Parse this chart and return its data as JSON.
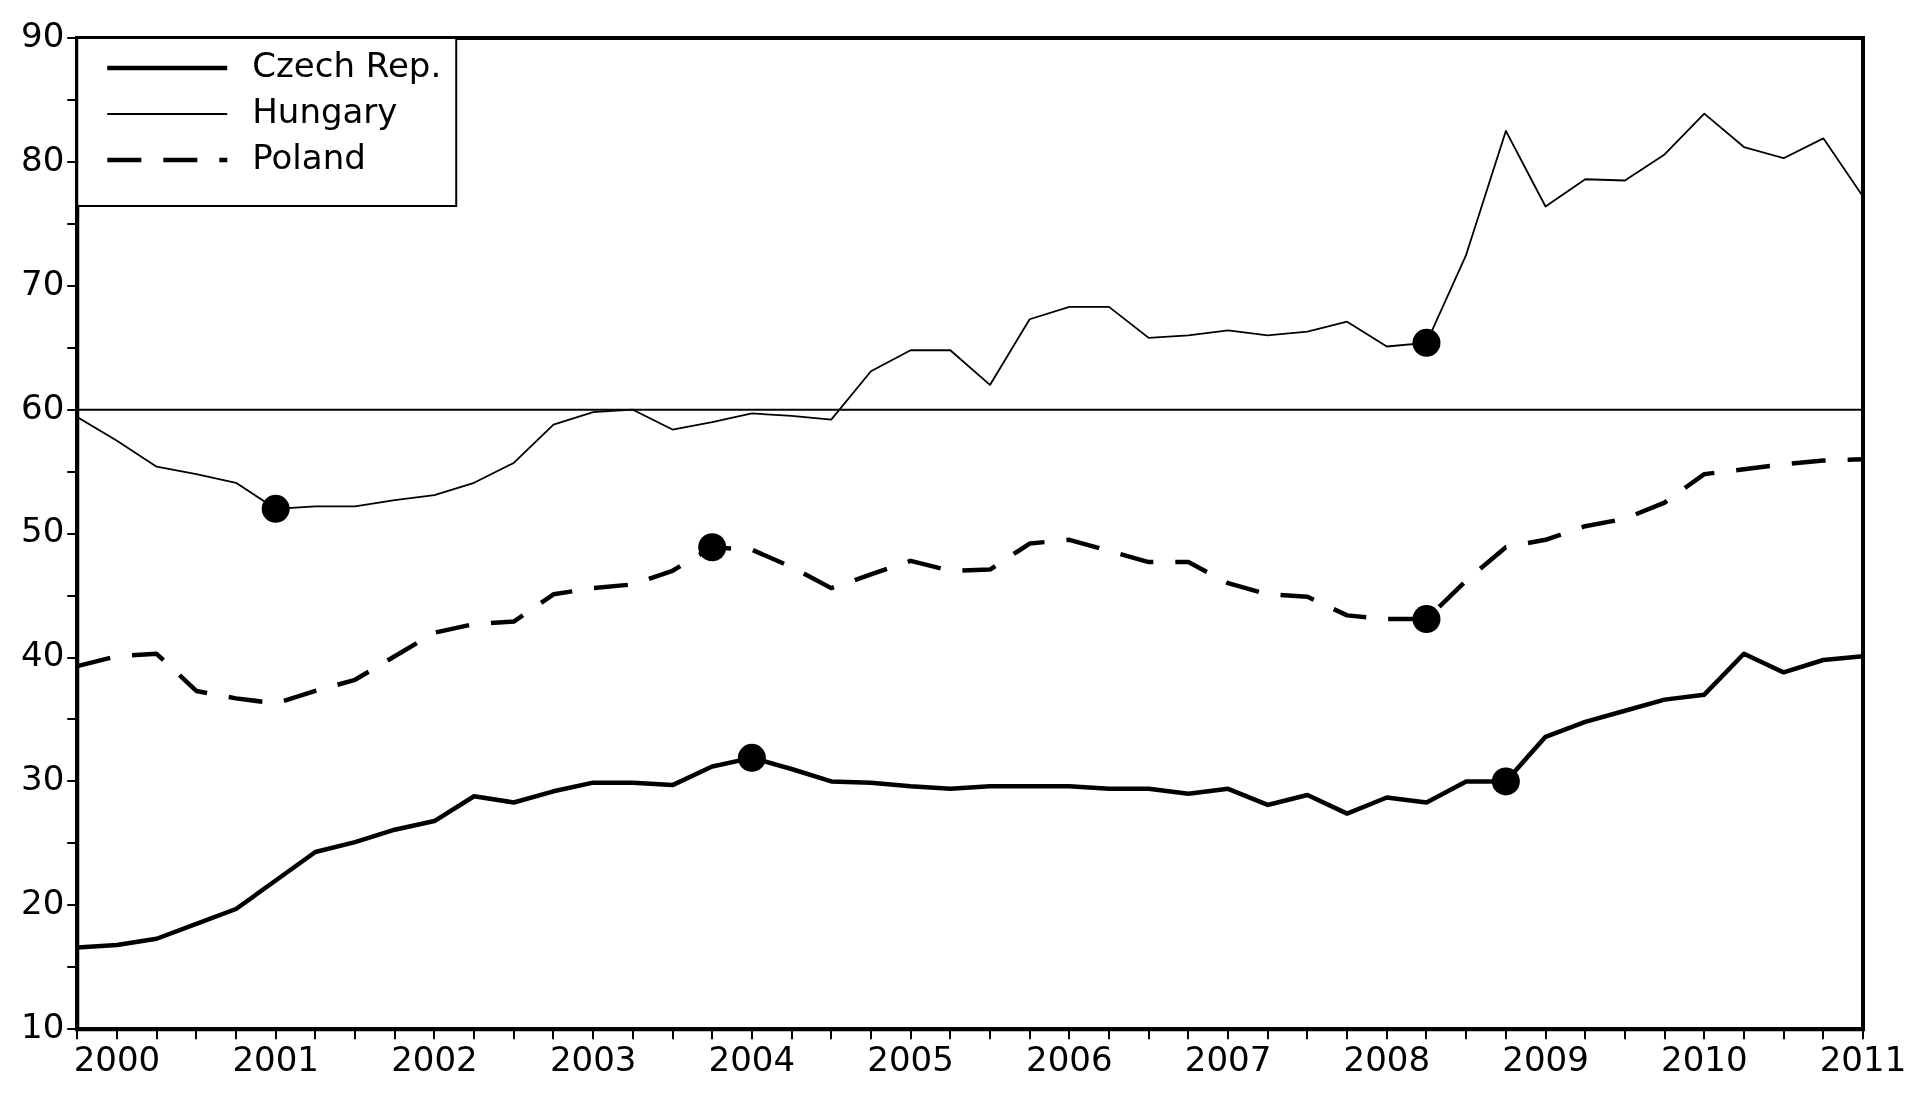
{
  "chart_data": {
    "type": "line",
    "x": [
      1999.75,
      2000,
      2000.25,
      2000.5,
      2000.75,
      2001,
      2001.25,
      2001.5,
      2001.75,
      2002,
      2002.25,
      2002.5,
      2002.75,
      2003,
      2003.25,
      2003.5,
      2003.75,
      2004,
      2004.25,
      2004.5,
      2004.75,
      2005,
      2005.25,
      2005.5,
      2005.75,
      2006,
      2006.25,
      2006.5,
      2006.75,
      2007,
      2007.25,
      2007.5,
      2007.75,
      2008,
      2008.25,
      2008.5,
      2008.75,
      2009,
      2009.25,
      2009.5,
      2009.75,
      2010,
      2010.25,
      2010.5,
      2010.75,
      2011
    ],
    "series": [
      {
        "name": "Czech Rep.",
        "color": "#000000",
        "line_style": "solid",
        "values": [
          16.6,
          16.8,
          17.3,
          18.5,
          19.7,
          22.0,
          24.3,
          25.1,
          26.1,
          26.8,
          28.8,
          28.3,
          29.2,
          29.9,
          29.9,
          29.7,
          31.2,
          31.9,
          31.0,
          30.0,
          29.9,
          29.6,
          29.4,
          29.6,
          29.6,
          29.6,
          29.4,
          29.4,
          29.0,
          29.4,
          28.1,
          28.9,
          27.4,
          28.7,
          28.3,
          30.0,
          30.0,
          33.6,
          34.8,
          35.7,
          36.6,
          37.0,
          40.3,
          38.8,
          39.8,
          40.1
        ]
      },
      {
        "name": "Hungary",
        "color": "#000000",
        "line_style": "solid",
        "values": [
          59.4,
          57.5,
          55.4,
          54.8,
          54.1,
          52.0,
          52.2,
          52.2,
          52.7,
          53.1,
          54.1,
          55.7,
          58.8,
          59.8,
          60.0,
          58.4,
          59.0,
          59.7,
          59.5,
          59.2,
          63.1,
          64.8,
          64.8,
          62.0,
          67.3,
          68.3,
          68.3,
          65.8,
          66.0,
          66.4,
          66.0,
          66.3,
          67.1,
          65.1,
          65.4,
          72.5,
          82.5,
          76.4,
          78.6,
          78.5,
          80.6,
          83.9,
          81.2,
          80.3,
          81.9,
          77.2
        ]
      },
      {
        "name": "Poland",
        "color": "#000000",
        "line_style": "dashed",
        "values": [
          39.3,
          40.1,
          40.3,
          37.3,
          36.7,
          36.3,
          37.3,
          38.2,
          40.1,
          42.0,
          42.7,
          42.9,
          45.1,
          45.6,
          45.9,
          47.0,
          48.9,
          48.7,
          47.3,
          45.6,
          46.7,
          47.8,
          47.0,
          47.1,
          49.2,
          49.5,
          48.6,
          47.7,
          47.7,
          46.0,
          45.1,
          44.9,
          43.4,
          43.1,
          43.1,
          46.2,
          48.9,
          49.5,
          50.6,
          51.2,
          52.5,
          54.8,
          55.2,
          55.6,
          55.9,
          56.0
        ]
      },
      {
        "type": "scatter",
        "color": "#000000",
        "marker": "circle",
        "x": [
          2001,
          2008.25,
          2003.75,
          2008.25,
          2004,
          2008.75
        ],
        "values": [
          52.0,
          65.4,
          48.9,
          43.1,
          31.9,
          30.0
        ]
      }
    ],
    "xlim": [
      1999.75,
      2011
    ],
    "xticks": [
      {
        "value": 1999.75,
        "label": null
      },
      2000,
      {
        "value": 2000.25,
        "label": null
      },
      {
        "value": 2000.5,
        "label": null
      },
      {
        "value": 2000.75,
        "label": null
      },
      2001,
      {
        "value": 2001.25,
        "label": null
      },
      {
        "value": 2001.5,
        "label": null
      },
      {
        "value": 2001.75,
        "label": null
      },
      2002,
      {
        "value": 2002.25,
        "label": null
      },
      {
        "value": 2002.5,
        "label": null
      },
      {
        "value": 2002.75,
        "label": null
      },
      2003,
      {
        "value": 2003.25,
        "label": null
      },
      {
        "value": 2003.5,
        "label": null
      },
      {
        "value": 2003.75,
        "label": null
      },
      2004,
      {
        "value": 2004.25,
        "label": null
      },
      {
        "value": 2004.5,
        "label": null
      },
      {
        "value": 2004.75,
        "label": null
      },
      2005,
      {
        "value": 2005.25,
        "label": null
      },
      {
        "value": 2005.5,
        "label": null
      },
      {
        "value": 2005.75,
        "label": null
      },
      2006,
      {
        "value": 2006.25,
        "label": null
      },
      {
        "value": 2006.5,
        "label": null
      },
      {
        "value": 2006.75,
        "label": null
      },
      2007,
      {
        "value": 2007.25,
        "label": null
      },
      {
        "value": 2007.5,
        "label": null
      },
      {
        "value": 2007.75,
        "label": null
      },
      2008,
      {
        "value": 2008.25,
        "label": null
      },
      {
        "value": 2008.5,
        "label": null
      },
      {
        "value": 2008.75,
        "label": null
      },
      2009,
      {
        "value": 2009.25,
        "label": null
      },
      {
        "value": 2009.5,
        "label": null
      },
      {
        "value": 2009.75,
        "label": null
      },
      2010,
      {
        "value": 2010.25,
        "label": null
      },
      {
        "value": 2010.5,
        "label": null
      },
      {
        "value": 2010.75,
        "label": null
      },
      2011
    ],
    "ylim": [
      10,
      90
    ],
    "yticks": [
      10,
      {
        "value": 15,
        "label": null
      },
      20,
      {
        "value": 25,
        "label": null
      },
      30,
      {
        "value": 35,
        "label": null
      },
      40,
      {
        "value": 45,
        "label": null
      },
      50,
      {
        "value": 55,
        "label": null
      },
      60,
      {
        "value": 65,
        "label": null
      },
      70,
      {
        "value": 75,
        "label": null
      },
      80,
      {
        "value": 85,
        "label": null
      },
      90
    ],
    "ref_lines": [
      {
        "axis": "y",
        "value": 60,
        "color": "#000000",
        "line_style": "solid"
      }
    ],
    "grid": false,
    "legend": "top left",
    "marker": "none"
  }
}
